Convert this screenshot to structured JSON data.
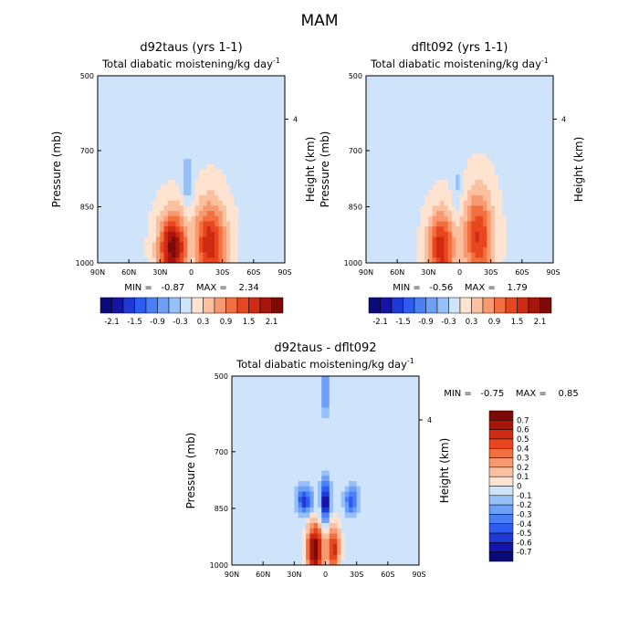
{
  "figure_title": "MAM",
  "chart_data": [
    {
      "type": "heatmap",
      "title": "d92taus (yrs 1-1)",
      "subtitle": "Total diabatic moistening/kg day",
      "subtitle_superscript": "-1",
      "ylabel": "Pressure (mb)",
      "ylabel_right": "Height (km)",
      "x_ticks": [
        "90N",
        "60N",
        "30N",
        "0",
        "30S",
        "60S",
        "90S"
      ],
      "y_ticks": [
        "500",
        "700",
        "850",
        "1000"
      ],
      "y_right_ticks": [
        "4"
      ],
      "xlim": [
        90,
        -90
      ],
      "ylim": [
        1000,
        500
      ],
      "stats": "MIN =   -0.87    MAX =    2.34",
      "min": -0.87,
      "max": 2.34,
      "colorbar_labels": [
        "-2.1",
        "-1.5",
        "-0.9",
        "-0.3",
        "0.3",
        "0.9",
        "1.5",
        "2.1"
      ],
      "colorbar_levels": [
        -2.1,
        -1.8,
        -1.5,
        -1.2,
        -0.9,
        -0.6,
        -0.3,
        0,
        0.3,
        0.6,
        0.9,
        1.2,
        1.5,
        1.8,
        2.1
      ],
      "blobs": [
        {
          "lat": 18,
          "p": 960,
          "amp": 2.34,
          "slat": 13,
          "sp": 90
        },
        {
          "lat": -18,
          "p": 950,
          "amp": 1.8,
          "slat": 15,
          "sp": 110
        },
        {
          "lat": 3,
          "p": 780,
          "amp": -0.6,
          "slat": 5,
          "sp": 70
        },
        {
          "lat": 0,
          "p": 970,
          "amp": -0.5,
          "slat": 4,
          "sp": 60
        }
      ]
    },
    {
      "type": "heatmap",
      "title": "dflt092 (yrs 1-1)",
      "subtitle": "Total diabatic moistening/kg day",
      "subtitle_superscript": "-1",
      "ylabel": "Pressure (mb)",
      "ylabel_right": "Height (km)",
      "x_ticks": [
        "90N",
        "60N",
        "30N",
        "0",
        "30S",
        "60S",
        "90S"
      ],
      "y_ticks": [
        "500",
        "700",
        "850",
        "1000"
      ],
      "y_right_ticks": [
        "4"
      ],
      "xlim": [
        90,
        -90
      ],
      "ylim": [
        1000,
        500
      ],
      "stats": "MIN =   -0.56    MAX =    1.79",
      "min": -0.56,
      "max": 1.79,
      "colorbar_labels": [
        "-2.1",
        "-1.5",
        "-0.9",
        "-0.3",
        "0.3",
        "0.9",
        "1.5",
        "2.1"
      ],
      "colorbar_levels": [
        -2.1,
        -1.8,
        -1.5,
        -1.2,
        -0.9,
        -0.6,
        -0.3,
        0,
        0.3,
        0.6,
        0.9,
        1.2,
        1.5,
        1.8,
        2.1
      ],
      "blobs": [
        {
          "lat": 18,
          "p": 960,
          "amp": 1.79,
          "slat": 12,
          "sp": 95
        },
        {
          "lat": -18,
          "p": 930,
          "amp": 1.6,
          "slat": 14,
          "sp": 120
        },
        {
          "lat": 2,
          "p": 800,
          "amp": -0.35,
          "slat": 5,
          "sp": 70
        }
      ]
    },
    {
      "type": "heatmap",
      "title": "d92taus - dflt092",
      "subtitle": "Total diabatic moistening/kg day",
      "subtitle_superscript": "-1",
      "ylabel": "Pressure (mb)",
      "ylabel_right": "Height (km)",
      "x_ticks": [
        "90N",
        "60N",
        "30N",
        "0",
        "30S",
        "60S",
        "90S"
      ],
      "y_ticks": [
        "500",
        "700",
        "850",
        "1000"
      ],
      "y_right_ticks": [
        "4"
      ],
      "xlim": [
        90,
        -90
      ],
      "ylim": [
        1000,
        500
      ],
      "stats": "MIN =   -0.75    MAX =    0.85",
      "min": -0.75,
      "max": 0.85,
      "colorbar_labels": [
        "0.7",
        "0.6",
        "0.5",
        "0.4",
        "0.3",
        "0.2",
        "0.1",
        "0",
        "-0.1",
        "-0.2",
        "-0.3",
        "-0.4",
        "-0.5",
        "-0.6",
        "-0.7"
      ],
      "colorbar_levels": [
        -0.7,
        -0.6,
        -0.5,
        -0.4,
        -0.3,
        -0.2,
        -0.1,
        0,
        0.1,
        0.2,
        0.3,
        0.4,
        0.5,
        0.6,
        0.7
      ],
      "blobs": [
        {
          "lat": 0,
          "p": 830,
          "amp": -0.75,
          "slat": 4,
          "sp": 55
        },
        {
          "lat": 20,
          "p": 830,
          "amp": -0.55,
          "slat": 7,
          "sp": 35
        },
        {
          "lat": -25,
          "p": 830,
          "amp": -0.45,
          "slat": 6,
          "sp": 35
        },
        {
          "lat": 10,
          "p": 960,
          "amp": 0.85,
          "slat": 8,
          "sp": 70
        },
        {
          "lat": -8,
          "p": 955,
          "amp": 0.6,
          "slat": 6,
          "sp": 60
        },
        {
          "lat": 0,
          "p": 540,
          "amp": -0.3,
          "slat": 4,
          "sp": 60
        }
      ]
    }
  ]
}
